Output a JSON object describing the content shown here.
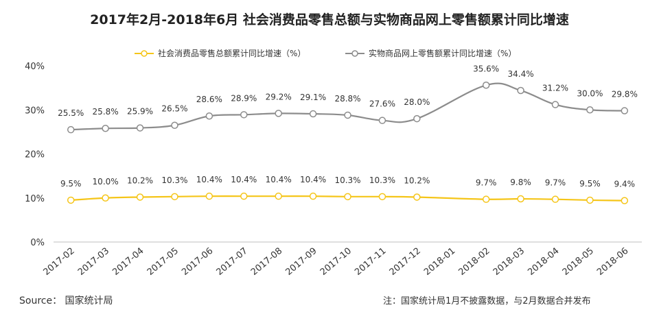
{
  "chart_data": {
    "type": "line",
    "title": "2017年2月-2018年6月 社会消费品零售总额与实物商品网上零售额累计同比增速",
    "categories": [
      "2017-02",
      "2017-03",
      "2017-04",
      "2017-05",
      "2017-06",
      "2017-07",
      "2017-08",
      "2017-09",
      "2017-10",
      "2017-11",
      "2017-12",
      "2018-01",
      "2018-02",
      "2018-03",
      "2018-04",
      "2018-05",
      "2018-06"
    ],
    "y_ticks": [
      "0%",
      "10%",
      "20%",
      "30%",
      "40%"
    ],
    "ylim": [
      0,
      40
    ],
    "grid": false,
    "legend_position": "top",
    "series": [
      {
        "name": "社会消费品零售总额累计同比增速（%）",
        "color": "#f5c518",
        "values": [
          9.5,
          10.0,
          10.2,
          10.3,
          10.4,
          10.4,
          10.4,
          10.4,
          10.3,
          10.3,
          10.2,
          null,
          9.7,
          9.8,
          9.7,
          9.5,
          9.4
        ],
        "labels": [
          "9.5%",
          "10.0%",
          "10.2%",
          "10.3%",
          "10.4%",
          "10.4%",
          "10.4%",
          "10.4%",
          "10.3%",
          "10.3%",
          "10.2%",
          null,
          "9.7%",
          "9.8%",
          "9.7%",
          "9.5%",
          "9.4%"
        ]
      },
      {
        "name": "实物商品网上零售额累计同比增速（%）",
        "color": "#8c8c8c",
        "values": [
          25.5,
          25.8,
          25.9,
          26.5,
          28.6,
          28.9,
          29.2,
          29.1,
          28.8,
          27.6,
          28.0,
          null,
          35.6,
          34.4,
          31.2,
          30.0,
          29.8
        ],
        "labels": [
          "25.5%",
          "25.8%",
          "25.9%",
          "26.5%",
          "28.6%",
          "28.9%",
          "29.2%",
          "29.1%",
          "28.8%",
          "27.6%",
          "28.0%",
          null,
          "35.6%",
          "34.4%",
          "31.2%",
          "30.0%",
          "29.8%"
        ]
      }
    ]
  },
  "source": "Source： 国家统计局",
  "footnote": "注：国家统计局1月不披露数据，与2月数据合并发布"
}
